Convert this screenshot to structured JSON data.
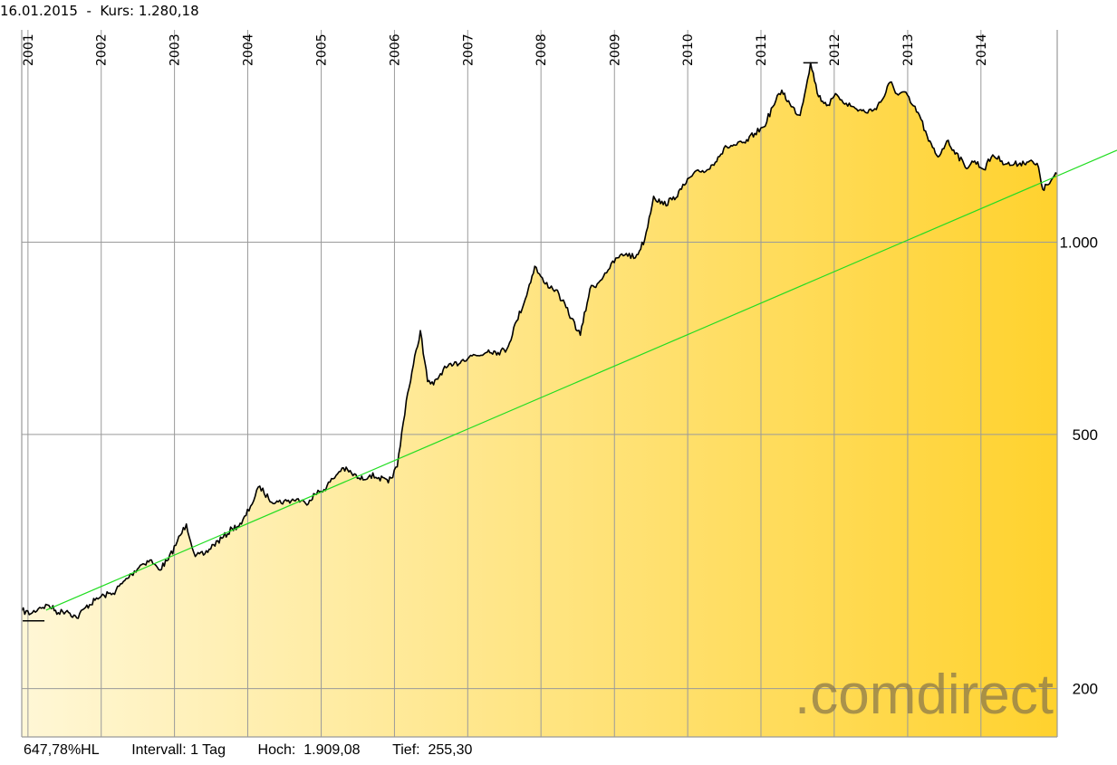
{
  "header": {
    "date": "16.01.2015",
    "separator": "-",
    "price_label": "Kurs:",
    "price_value": "1.280,18"
  },
  "footer": {
    "performance": "647,78%HL",
    "interval_label": "Intervall:",
    "interval_value": "1 Tag",
    "high_label": "Hoch:",
    "high_value": "1.909,08",
    "low_label": "Tief:",
    "low_value": "255,30"
  },
  "watermark": ".comdirect",
  "colors": {
    "fill_light": "#fff7d6",
    "fill_dark": "#ffd22e",
    "price_line": "#000000",
    "trend_line": "#22dd22",
    "grid": "#9a9a9a"
  },
  "chart_data": {
    "type": "area",
    "y_scale": "log",
    "ylim": [
      168,
      2150
    ],
    "xlim": [
      "2000-12-01",
      "2015-01-16"
    ],
    "y_ticks": [
      {
        "value": 200,
        "label": "200"
      },
      {
        "value": 500,
        "label": "500"
      },
      {
        "value": 1000,
        "label": "1.000"
      }
    ],
    "x_ticks": [
      "2001",
      "2002",
      "2003",
      "2004",
      "2005",
      "2006",
      "2007",
      "2008",
      "2009",
      "2010",
      "2011",
      "2012",
      "2013",
      "2014"
    ],
    "grid": true,
    "series": [
      {
        "x": [
          "2000-12-01",
          "2001-01-15",
          "2001-03-01",
          "2001-04-15",
          "2001-06-01",
          "2001-07-15",
          "2001-09-01",
          "2001-10-15",
          "2001-12-01",
          "2002-01-15",
          "2002-03-01",
          "2002-04-15",
          "2002-06-01",
          "2002-07-15",
          "2002-09-01",
          "2002-10-15",
          "2002-12-01",
          "2003-01-15",
          "2003-03-01",
          "2003-04-15",
          "2003-06-01",
          "2003-07-15",
          "2003-09-01",
          "2003-10-15",
          "2003-12-01",
          "2004-01-15",
          "2004-03-01",
          "2004-04-15",
          "2004-06-01",
          "2004-07-15",
          "2004-09-01",
          "2004-10-15",
          "2004-12-01",
          "2005-01-15",
          "2005-03-01",
          "2005-04-15",
          "2005-06-01",
          "2005-07-15",
          "2005-09-01",
          "2005-10-15",
          "2005-12-01",
          "2006-01-15",
          "2006-03-01",
          "2006-05-10",
          "2006-06-15",
          "2006-07-15",
          "2006-09-01",
          "2006-10-15",
          "2006-12-01",
          "2007-01-15",
          "2007-03-01",
          "2007-04-15",
          "2007-06-01",
          "2007-07-15",
          "2007-09-01",
          "2007-10-15",
          "2007-12-01",
          "2008-01-15",
          "2008-03-15",
          "2008-04-15",
          "2008-06-01",
          "2008-07-15",
          "2008-09-01",
          "2008-10-15",
          "2008-11-15",
          "2008-12-01",
          "2009-01-15",
          "2009-03-01",
          "2009-04-15",
          "2009-06-01",
          "2009-07-15",
          "2009-09-01",
          "2009-10-15",
          "2009-12-01",
          "2010-01-15",
          "2010-03-01",
          "2010-04-15",
          "2010-06-01",
          "2010-07-15",
          "2010-09-01",
          "2010-10-15",
          "2010-12-01",
          "2011-01-15",
          "2011-03-01",
          "2011-04-15",
          "2011-06-01",
          "2011-07-15",
          "2011-09-05",
          "2011-10-15",
          "2011-12-01",
          "2012-01-15",
          "2012-03-01",
          "2012-04-15",
          "2012-06-01",
          "2012-07-15",
          "2012-09-01",
          "2012-10-05",
          "2012-11-15",
          "2012-12-15",
          "2013-01-15",
          "2013-03-01",
          "2013-04-15",
          "2013-06-01",
          "2013-07-15",
          "2013-09-01",
          "2013-10-15",
          "2013-12-01",
          "2014-01-15",
          "2014-03-01",
          "2014-04-15",
          "2014-06-01",
          "2014-07-15",
          "2014-09-01",
          "2014-10-15",
          "2014-11-05",
          "2014-12-01",
          "2015-01-16"
        ],
        "y": [
          265,
          262,
          268,
          270,
          263,
          265,
          258,
          268,
          275,
          280,
          282,
          292,
          302,
          312,
          318,
          307,
          318,
          340,
          362,
          322,
          325,
          336,
          345,
          356,
          362,
          386,
          415,
          396,
          392,
          393,
          396,
          390,
          403,
          410,
          426,
          443,
          435,
          425,
          432,
          428,
          420,
          445,
          565,
          727,
          605,
          598,
          632,
          640,
          652,
          665,
          664,
          678,
          672,
          680,
          752,
          815,
          917,
          865,
          842,
          810,
          760,
          715,
          845,
          865,
          895,
          905,
          945,
          960,
          945,
          1010,
          1180,
          1145,
          1165,
          1210,
          1265,
          1290,
          1300,
          1360,
          1410,
          1420,
          1430,
          1480,
          1515,
          1630,
          1730,
          1630,
          1580,
          1909,
          1690,
          1640,
          1700,
          1650,
          1620,
          1600,
          1610,
          1680,
          1780,
          1700,
          1720,
          1655,
          1580,
          1440,
          1360,
          1440,
          1380,
          1310,
          1340,
          1300,
          1370,
          1340,
          1320,
          1330,
          1340,
          1310,
          1210,
          1230,
          1280
        ]
      }
    ],
    "trendline": {
      "x": [
        "2001-01-01",
        "2015-01-16"
      ],
      "y": [
        258,
        1270
      ]
    }
  }
}
